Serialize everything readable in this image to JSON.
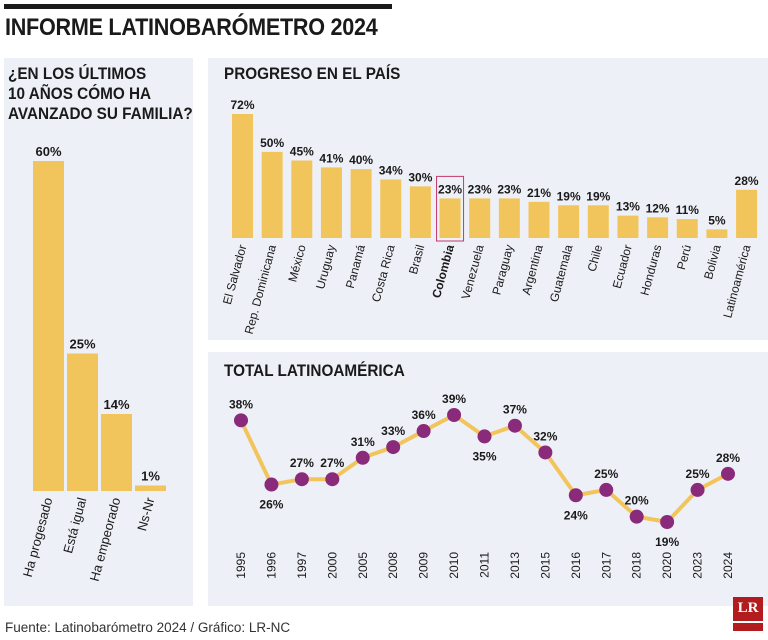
{
  "title": "INFORME LATINOBARÓMETRO 2024",
  "source": "Fuente: Latinobarómetro 2024 / Gráfico: LR-NC",
  "logo": "LR",
  "colors": {
    "bar": "#f2c55c",
    "line": "#f2c55c",
    "point": "#8a2a7a",
    "panel": "#eef0f7",
    "highlight": "#c23a6a"
  },
  "chart_data": [
    {
      "type": "bar",
      "title_lines": [
        "¿EN LOS ÚLTIMOS",
        "10 AÑOS CÓMO HA",
        "AVANZADO SU FAMILIA?"
      ],
      "categories": [
        "Ha progesado",
        "Está igual",
        "Ha empeorado",
        "Ns-Nr"
      ],
      "values": [
        60,
        25,
        14,
        1
      ],
      "unit": "%"
    },
    {
      "type": "bar",
      "title": "PROGRESO EN EL PAÍS",
      "categories": [
        "El Salvador",
        "Rep. Dominicana",
        "México",
        "Uruguay",
        "Panamá",
        "Costa Rica",
        "Brasil",
        "Colombia",
        "Venezuela",
        "Paraguay",
        "Argentina",
        "Guatemala",
        "Chile",
        "Ecuador",
        "Honduras",
        "Perú",
        "Bolivia",
        "Latinoamérica"
      ],
      "values": [
        72,
        50,
        45,
        41,
        40,
        34,
        30,
        23,
        23,
        23,
        21,
        19,
        19,
        13,
        12,
        11,
        5,
        28
      ],
      "highlight": "Colombia",
      "unit": "%"
    },
    {
      "type": "line",
      "title": "TOTAL LATINOAMÉRICA",
      "x": [
        "1995",
        "1996",
        "1997",
        "2000",
        "2005",
        "2008",
        "2009",
        "2010",
        "2011",
        "2013",
        "2015",
        "2016",
        "2017",
        "2018",
        "2020",
        "2023",
        "2024"
      ],
      "values": [
        38,
        26,
        27,
        27,
        31,
        33,
        36,
        39,
        35,
        37,
        32,
        24,
        25,
        20,
        19,
        25,
        28
      ],
      "unit": "%"
    }
  ]
}
